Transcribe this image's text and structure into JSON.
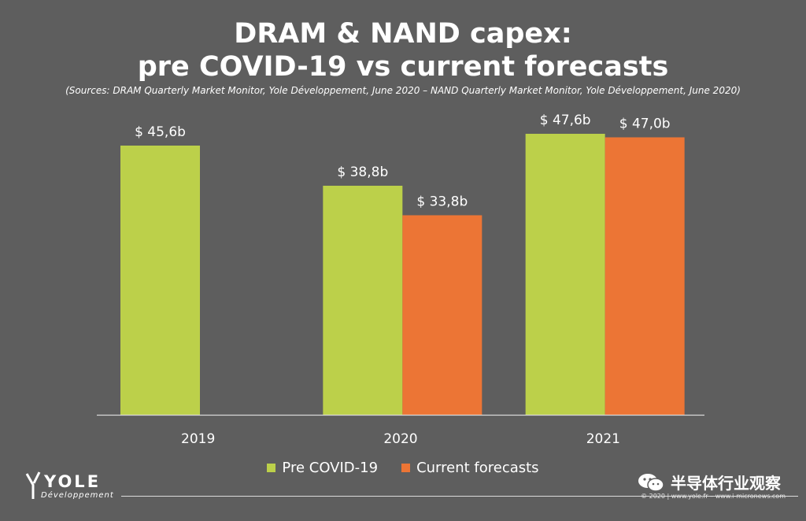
{
  "title_line1": "DRAM & NAND capex:",
  "title_line2": "pre COVID-19 vs current forecasts",
  "sources": "(Sources: DRAM Quarterly Market Monitor, Yole Développement, June 2020 – NAND Quarterly Market Monitor, Yole Développement, June 2020)",
  "colors": {
    "background": "#5e5e5e",
    "pre": "#bcd04a",
    "current": "#ec7535",
    "axis": "#d8d8d8"
  },
  "chart_data": {
    "type": "bar",
    "categories": [
      "2019",
      "2020",
      "2021"
    ],
    "series": [
      {
        "name": "Pre COVID-19",
        "values": [
          45.6,
          38.8,
          47.6
        ],
        "labels": [
          "$ 45,6b",
          "$ 38,8b",
          "$ 47,6b"
        ]
      },
      {
        "name": "Current forecasts",
        "values": [
          null,
          33.8,
          47.0
        ],
        "labels": [
          null,
          "$ 33,8b",
          "$ 47,0b"
        ]
      }
    ],
    "title": "DRAM & NAND capex: pre COVID-19 vs current forecasts",
    "xlabel": "",
    "ylabel": "",
    "ylim": [
      0,
      47.6
    ],
    "grid": false,
    "legend": "bottom-center"
  },
  "legend": {
    "pre": "Pre COVID-19",
    "current": "Current forecasts"
  },
  "logo": {
    "name": "YOLE",
    "sub": "Développement"
  },
  "copyright": "© 2020 | www.yole.fr – www.i-micronews.com",
  "watermark": "半导体行业观察",
  "icons": {
    "logo": "yole-logo-icon",
    "watermark": "wechat-icon"
  }
}
